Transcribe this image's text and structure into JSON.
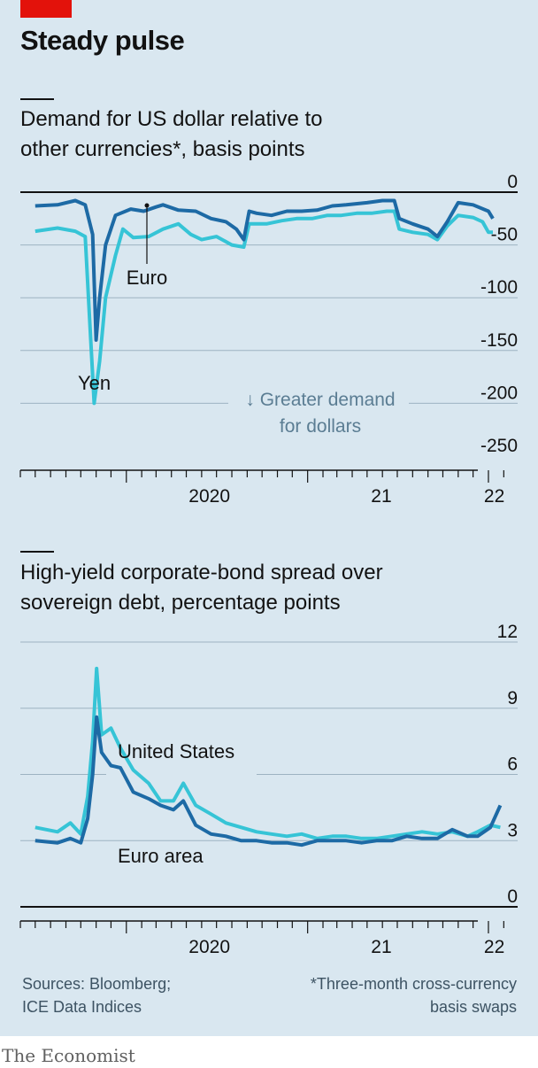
{
  "header": {
    "title": "Steady pulse"
  },
  "charts_text": {
    "c1_subtitle_1": "Demand for US dollar relative to",
    "c1_subtitle_2": "other currencies*, basis points",
    "c1_note_arrow": "↓ Greater demand",
    "c1_note_2": "for dollars",
    "c2_subtitle_1": "High-yield corporate-bond spread over",
    "c2_subtitle_2": "sovereign debt, percentage points"
  },
  "footer": {
    "sources_1": "Sources: Bloomberg;",
    "sources_2": "ICE Data Indices",
    "footnote_1": "*Three-month cross-currency",
    "footnote_2": "basis swaps",
    "logo": "The Economist"
  },
  "colors": {
    "dark_series": "#1d6aa5",
    "light_series": "#36c4d6",
    "background": "#d9e7f0",
    "brand_red": "#e3120b"
  },
  "chart_data": [
    {
      "type": "line",
      "ylim": [
        -250,
        0
      ],
      "yticks": [
        0,
        -50,
        -100,
        -150,
        -200,
        -250
      ],
      "x_labels": [
        "2020",
        "21",
        "22"
      ],
      "series": [
        {
          "name": "Euro",
          "color": "#1d6aa5",
          "points": [
            [
              "2019-07-01",
              -13
            ],
            [
              "2019-08-15",
              -12
            ],
            [
              "2019-09-20",
              -8
            ],
            [
              "2019-10-10",
              -12
            ],
            [
              "2019-10-25",
              -40
            ],
            [
              "2019-11-01",
              -140
            ],
            [
              "2019-11-08",
              -100
            ],
            [
              "2019-11-20",
              -50
            ],
            [
              "2019-12-10",
              -22
            ],
            [
              "2020-01-10",
              -16
            ],
            [
              "2020-02-05",
              -18
            ],
            [
              "2020-03-01",
              -14
            ],
            [
              "2020-03-15",
              -12
            ],
            [
              "2020-04-15",
              -17
            ],
            [
              "2020-05-20",
              -18
            ],
            [
              "2020-06-20",
              -25
            ],
            [
              "2020-07-20",
              -28
            ],
            [
              "2020-08-10",
              -35
            ],
            [
              "2020-08-25",
              -45
            ],
            [
              "2020-09-05",
              -18
            ],
            [
              "2020-09-20",
              -20
            ],
            [
              "2020-10-20",
              -22
            ],
            [
              "2020-11-20",
              -18
            ],
            [
              "2020-12-20",
              -18
            ],
            [
              "2021-01-20",
              -17
            ],
            [
              "2021-02-20",
              -13
            ],
            [
              "2021-03-20",
              -12
            ],
            [
              "2021-05-01",
              -10
            ],
            [
              "2021-06-01",
              -8
            ],
            [
              "2021-06-25",
              -8
            ],
            [
              "2021-07-05",
              -25
            ],
            [
              "2021-08-01",
              -30
            ],
            [
              "2021-09-01",
              -35
            ],
            [
              "2021-09-20",
              -42
            ],
            [
              "2021-10-10",
              -28
            ],
            [
              "2021-11-01",
              -10
            ],
            [
              "2021-12-01",
              -12
            ],
            [
              "2022-01-01",
              -18
            ],
            [
              "2022-01-10",
              -25
            ]
          ]
        },
        {
          "name": "Yen",
          "color": "#36c4d6",
          "points": [
            [
              "2019-07-01",
              -37
            ],
            [
              "2019-08-15",
              -34
            ],
            [
              "2019-09-20",
              -37
            ],
            [
              "2019-10-10",
              -42
            ],
            [
              "2019-10-20",
              -130
            ],
            [
              "2019-10-28",
              -200
            ],
            [
              "2019-11-08",
              -160
            ],
            [
              "2019-11-20",
              -100
            ],
            [
              "2019-12-10",
              -60
            ],
            [
              "2019-12-25",
              -35
            ],
            [
              "2020-01-15",
              -43
            ],
            [
              "2020-02-15",
              -42
            ],
            [
              "2020-03-15",
              -35
            ],
            [
              "2020-04-15",
              -30
            ],
            [
              "2020-05-10",
              -40
            ],
            [
              "2020-06-01",
              -45
            ],
            [
              "2020-07-01",
              -42
            ],
            [
              "2020-08-01",
              -50
            ],
            [
              "2020-08-25",
              -52
            ],
            [
              "2020-09-05",
              -30
            ],
            [
              "2020-10-10",
              -30
            ],
            [
              "2020-11-10",
              -27
            ],
            [
              "2020-12-10",
              -25
            ],
            [
              "2021-01-10",
              -25
            ],
            [
              "2021-02-10",
              -22
            ],
            [
              "2021-03-10",
              -22
            ],
            [
              "2021-04-10",
              -20
            ],
            [
              "2021-05-10",
              -20
            ],
            [
              "2021-06-10",
              -18
            ],
            [
              "2021-06-25",
              -18
            ],
            [
              "2021-07-05",
              -35
            ],
            [
              "2021-08-01",
              -38
            ],
            [
              "2021-09-01",
              -40
            ],
            [
              "2021-09-20",
              -45
            ],
            [
              "2021-10-10",
              -32
            ],
            [
              "2021-11-01",
              -22
            ],
            [
              "2021-12-01",
              -24
            ],
            [
              "2021-12-20",
              -28
            ],
            [
              "2022-01-01",
              -38
            ],
            [
              "2022-01-10",
              -38
            ]
          ]
        }
      ]
    },
    {
      "type": "line",
      "ylim": [
        0,
        12
      ],
      "yticks": [
        0,
        3,
        6,
        9,
        12
      ],
      "x_labels": [
        "2020",
        "21",
        "22"
      ],
      "series": [
        {
          "name": "United States",
          "color": "#36c4d6",
          "points": [
            [
              "2019-07-01",
              3.6
            ],
            [
              "2019-08-15",
              3.4
            ],
            [
              "2019-09-10",
              3.8
            ],
            [
              "2019-10-01",
              3.3
            ],
            [
              "2019-10-15",
              5.0
            ],
            [
              "2019-10-25",
              7.5
            ],
            [
              "2019-11-02",
              10.8
            ],
            [
              "2019-11-12",
              7.8
            ],
            [
              "2019-12-01",
              8.1
            ],
            [
              "2019-12-20",
              7.2
            ],
            [
              "2020-01-15",
              6.2
            ],
            [
              "2020-02-15",
              5.6
            ],
            [
              "2020-03-10",
              4.8
            ],
            [
              "2020-04-05",
              4.8
            ],
            [
              "2020-04-25",
              5.6
            ],
            [
              "2020-05-20",
              4.6
            ],
            [
              "2020-06-20",
              4.2
            ],
            [
              "2020-07-20",
              3.8
            ],
            [
              "2020-08-20",
              3.6
            ],
            [
              "2020-09-20",
              3.4
            ],
            [
              "2020-10-20",
              3.3
            ],
            [
              "2020-11-20",
              3.2
            ],
            [
              "2020-12-20",
              3.3
            ],
            [
              "2021-01-20",
              3.1
            ],
            [
              "2021-02-20",
              3.2
            ],
            [
              "2021-03-20",
              3.2
            ],
            [
              "2021-04-20",
              3.1
            ],
            [
              "2021-05-20",
              3.1
            ],
            [
              "2021-06-20",
              3.2
            ],
            [
              "2021-07-20",
              3.3
            ],
            [
              "2021-08-20",
              3.4
            ],
            [
              "2021-09-20",
              3.3
            ],
            [
              "2021-10-20",
              3.4
            ],
            [
              "2021-11-20",
              3.2
            ],
            [
              "2021-12-10",
              3.4
            ],
            [
              "2022-01-05",
              3.7
            ],
            [
              "2022-01-25",
              3.6
            ]
          ]
        },
        {
          "name": "Euro area",
          "color": "#1d6aa5",
          "points": [
            [
              "2019-07-01",
              3.0
            ],
            [
              "2019-08-15",
              2.9
            ],
            [
              "2019-09-10",
              3.1
            ],
            [
              "2019-10-01",
              2.9
            ],
            [
              "2019-10-15",
              4.0
            ],
            [
              "2019-10-25",
              6.0
            ],
            [
              "2019-11-02",
              8.6
            ],
            [
              "2019-11-12",
              7.0
            ],
            [
              "2019-12-01",
              6.4
            ],
            [
              "2019-12-20",
              6.3
            ],
            [
              "2020-01-15",
              5.2
            ],
            [
              "2020-02-15",
              4.9
            ],
            [
              "2020-03-10",
              4.6
            ],
            [
              "2020-04-05",
              4.4
            ],
            [
              "2020-04-25",
              4.8
            ],
            [
              "2020-05-20",
              3.7
            ],
            [
              "2020-06-20",
              3.3
            ],
            [
              "2020-07-20",
              3.2
            ],
            [
              "2020-08-20",
              3.0
            ],
            [
              "2020-09-20",
              3.0
            ],
            [
              "2020-10-20",
              2.9
            ],
            [
              "2020-11-20",
              2.9
            ],
            [
              "2020-12-20",
              2.8
            ],
            [
              "2021-01-20",
              3.0
            ],
            [
              "2021-02-20",
              3.0
            ],
            [
              "2021-03-20",
              3.0
            ],
            [
              "2021-04-20",
              2.9
            ],
            [
              "2021-05-20",
              3.0
            ],
            [
              "2021-06-20",
              3.0
            ],
            [
              "2021-07-20",
              3.2
            ],
            [
              "2021-08-20",
              3.1
            ],
            [
              "2021-09-20",
              3.1
            ],
            [
              "2021-10-20",
              3.5
            ],
            [
              "2021-11-20",
              3.2
            ],
            [
              "2021-12-10",
              3.2
            ],
            [
              "2022-01-05",
              3.6
            ],
            [
              "2022-01-25",
              4.6
            ]
          ]
        }
      ]
    }
  ]
}
